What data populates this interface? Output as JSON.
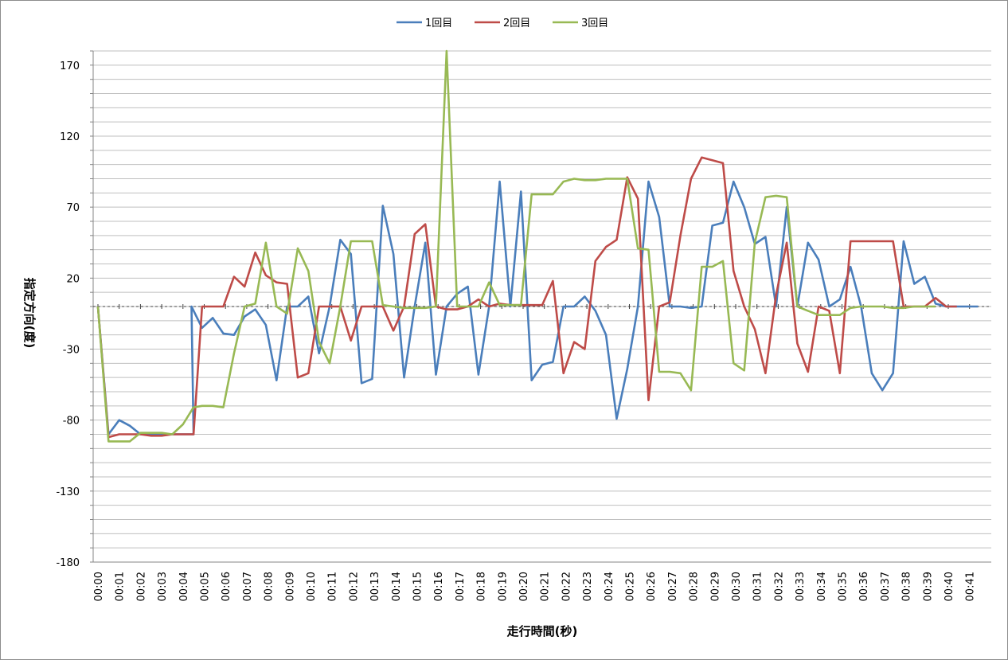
{
  "chart_data": {
    "type": "line",
    "xlabel": "走行時間(秒)",
    "ylabel": "指定方向(度)",
    "ylim": [
      -180,
      180
    ],
    "yticks": [
      -180,
      -130,
      -80,
      -30,
      20,
      70,
      120,
      170
    ],
    "grid": true,
    "legend_position": "top-center",
    "x_tick_labels": [
      "00:00",
      "00:01",
      "00:02",
      "00:03",
      "00:04",
      "00:05",
      "00:06",
      "00:07",
      "00:08",
      "00:09",
      "00:10",
      "00:11",
      "00:12",
      "00:13",
      "00:14",
      "00:15",
      "00:16",
      "00:17",
      "00:18",
      "00:19",
      "00:20",
      "00:21",
      "00:22",
      "00:23",
      "00:24",
      "00:25",
      "00:26",
      "00:27",
      "00:28",
      "00:29",
      "00:30",
      "00:31",
      "00:32",
      "00:33",
      "00:34",
      "00:35",
      "00:36",
      "00:37",
      "00:38",
      "00:39",
      "00:40",
      "00:41"
    ],
    "x_unit": "seconds",
    "series": [
      {
        "name": "1回目",
        "color": "#4a7ebb",
        "points": [
          [
            0,
            0
          ],
          [
            0.5,
            -90
          ],
          [
            1,
            -80
          ],
          [
            1.5,
            -84
          ],
          [
            2,
            -90
          ],
          [
            2.5,
            -90
          ],
          [
            3,
            -90
          ],
          [
            3.5,
            -90
          ],
          [
            4,
            -90
          ],
          [
            4.5,
            -90
          ],
          [
            4.4,
            0
          ],
          [
            4.9,
            -15
          ],
          [
            5.4,
            -8
          ],
          [
            5.9,
            -19
          ],
          [
            6.4,
            -20
          ],
          [
            6.9,
            -7
          ],
          [
            7.4,
            -2
          ],
          [
            7.9,
            -13
          ],
          [
            8.4,
            -52
          ],
          [
            8.9,
            0
          ],
          [
            9.4,
            0
          ],
          [
            9.9,
            7
          ],
          [
            10.4,
            -33
          ],
          [
            10.9,
            0
          ],
          [
            11.4,
            47
          ],
          [
            11.9,
            37
          ],
          [
            12.4,
            -54
          ],
          [
            12.9,
            -51
          ],
          [
            13.4,
            71
          ],
          [
            13.9,
            37
          ],
          [
            14.4,
            -50
          ],
          [
            14.9,
            0
          ],
          [
            15.4,
            45
          ],
          [
            15.9,
            -48
          ],
          [
            16.4,
            0
          ],
          [
            16.9,
            9
          ],
          [
            17.4,
            14
          ],
          [
            17.9,
            -48
          ],
          [
            18.4,
            0
          ],
          [
            18.9,
            88
          ],
          [
            19.4,
            0
          ],
          [
            19.9,
            81
          ],
          [
            20.4,
            -52
          ],
          [
            20.9,
            -41
          ],
          [
            21.4,
            -39
          ],
          [
            21.9,
            0
          ],
          [
            22.4,
            0
          ],
          [
            22.9,
            7
          ],
          [
            23.4,
            -3
          ],
          [
            23.9,
            -20
          ],
          [
            24.4,
            -79
          ],
          [
            24.9,
            -44
          ],
          [
            25.4,
            0
          ],
          [
            25.9,
            88
          ],
          [
            26.4,
            63
          ],
          [
            26.9,
            0
          ],
          [
            27.4,
            0
          ],
          [
            27.9,
            -1
          ],
          [
            28.4,
            0
          ],
          [
            28.9,
            57
          ],
          [
            29.4,
            59
          ],
          [
            29.9,
            88
          ],
          [
            30.4,
            70
          ],
          [
            30.9,
            44
          ],
          [
            31.4,
            49
          ],
          [
            31.9,
            0
          ],
          [
            32.4,
            70
          ],
          [
            32.9,
            0
          ],
          [
            33.4,
            45
          ],
          [
            33.9,
            33
          ],
          [
            34.4,
            0
          ],
          [
            34.9,
            5
          ],
          [
            35.4,
            28
          ],
          [
            35.9,
            0
          ],
          [
            36.4,
            -47
          ],
          [
            36.9,
            -59
          ],
          [
            37.4,
            -47
          ],
          [
            37.9,
            46
          ],
          [
            38.4,
            16
          ],
          [
            38.9,
            21
          ],
          [
            39.4,
            2
          ],
          [
            39.9,
            0
          ],
          [
            40.4,
            0
          ],
          [
            40.9,
            0
          ],
          [
            41.4,
            0
          ]
        ]
      },
      {
        "name": "2回目",
        "color": "#be4b48",
        "points": [
          [
            0,
            0
          ],
          [
            0.5,
            -92
          ],
          [
            1,
            -90
          ],
          [
            1.5,
            -90
          ],
          [
            2,
            -90
          ],
          [
            2.5,
            -91
          ],
          [
            3,
            -91
          ],
          [
            3.5,
            -90
          ],
          [
            4,
            -90
          ],
          [
            4.5,
            -90
          ],
          [
            4.9,
            0
          ],
          [
            5.4,
            0
          ],
          [
            5.9,
            0
          ],
          [
            6.4,
            21
          ],
          [
            6.9,
            14
          ],
          [
            7.4,
            38
          ],
          [
            7.9,
            22
          ],
          [
            8.4,
            17
          ],
          [
            8.9,
            16
          ],
          [
            9.4,
            -50
          ],
          [
            9.9,
            -47
          ],
          [
            10.4,
            0
          ],
          [
            10.9,
            0
          ],
          [
            11.4,
            0
          ],
          [
            11.9,
            -24
          ],
          [
            12.4,
            0
          ],
          [
            12.9,
            0
          ],
          [
            13.4,
            0
          ],
          [
            13.9,
            -17
          ],
          [
            14.4,
            0
          ],
          [
            14.9,
            51
          ],
          [
            15.4,
            58
          ],
          [
            15.9,
            0
          ],
          [
            16.4,
            -2
          ],
          [
            16.9,
            -2
          ],
          [
            17.4,
            0
          ],
          [
            17.9,
            5
          ],
          [
            18.4,
            0
          ],
          [
            18.9,
            2
          ],
          [
            19.4,
            1
          ],
          [
            19.9,
            1
          ],
          [
            20.4,
            1
          ],
          [
            20.9,
            1
          ],
          [
            21.4,
            18
          ],
          [
            21.9,
            -47
          ],
          [
            22.4,
            -25
          ],
          [
            22.9,
            -30
          ],
          [
            23.4,
            32
          ],
          [
            23.9,
            42
          ],
          [
            24.4,
            47
          ],
          [
            24.9,
            91
          ],
          [
            25.4,
            76
          ],
          [
            25.9,
            -66
          ],
          [
            26.4,
            0
          ],
          [
            26.9,
            3
          ],
          [
            27.4,
            50
          ],
          [
            27.9,
            90
          ],
          [
            28.4,
            105
          ],
          [
            28.9,
            103
          ],
          [
            29.4,
            101
          ],
          [
            29.9,
            25
          ],
          [
            30.4,
            0
          ],
          [
            30.9,
            -16
          ],
          [
            31.4,
            -47
          ],
          [
            31.9,
            8
          ],
          [
            32.4,
            45
          ],
          [
            32.9,
            -26
          ],
          [
            33.4,
            -46
          ],
          [
            33.9,
            0
          ],
          [
            34.4,
            -3
          ],
          [
            34.9,
            -47
          ],
          [
            35.4,
            46
          ],
          [
            35.9,
            46
          ],
          [
            36.4,
            46
          ],
          [
            36.9,
            46
          ],
          [
            37.4,
            46
          ],
          [
            37.9,
            0
          ],
          [
            38.4,
            0
          ],
          [
            38.9,
            0
          ],
          [
            39.4,
            6
          ],
          [
            39.9,
            0
          ],
          [
            40.4,
            0
          ]
        ]
      },
      {
        "name": "3回目",
        "color": "#98b954",
        "points": [
          [
            0,
            0
          ],
          [
            0.5,
            -95
          ],
          [
            1,
            -95
          ],
          [
            1.5,
            -95
          ],
          [
            2,
            -89
          ],
          [
            2.5,
            -89
          ],
          [
            3,
            -89
          ],
          [
            3.5,
            -90
          ],
          [
            4,
            -83
          ],
          [
            4.5,
            -71
          ],
          [
            4.9,
            -70
          ],
          [
            5.4,
            -70
          ],
          [
            5.9,
            -71
          ],
          [
            6.4,
            -33
          ],
          [
            6.9,
            0
          ],
          [
            7.4,
            2
          ],
          [
            7.9,
            45
          ],
          [
            8.4,
            0
          ],
          [
            8.9,
            -5
          ],
          [
            9.4,
            41
          ],
          [
            9.9,
            25
          ],
          [
            10.4,
            -25
          ],
          [
            10.9,
            -40
          ],
          [
            11.4,
            0
          ],
          [
            11.9,
            46
          ],
          [
            12.4,
            46
          ],
          [
            12.9,
            46
          ],
          [
            13.4,
            1
          ],
          [
            13.9,
            0
          ],
          [
            14.4,
            -1
          ],
          [
            14.9,
            -1
          ],
          [
            15.4,
            -1
          ],
          [
            15.9,
            0
          ],
          [
            16.4,
            180
          ],
          [
            16.9,
            0
          ],
          [
            17.4,
            0
          ],
          [
            17.9,
            0
          ],
          [
            18.4,
            17
          ],
          [
            18.9,
            1
          ],
          [
            19.4,
            1
          ],
          [
            19.9,
            1
          ],
          [
            20.4,
            79
          ],
          [
            20.9,
            79
          ],
          [
            21.4,
            79
          ],
          [
            21.9,
            88
          ],
          [
            22.4,
            90
          ],
          [
            22.9,
            89
          ],
          [
            23.4,
            89
          ],
          [
            23.9,
            90
          ],
          [
            24.4,
            90
          ],
          [
            24.9,
            90
          ],
          [
            25.4,
            41
          ],
          [
            25.9,
            40
          ],
          [
            26.4,
            -46
          ],
          [
            26.9,
            -46
          ],
          [
            27.4,
            -47
          ],
          [
            27.9,
            -59
          ],
          [
            28.4,
            28
          ],
          [
            28.9,
            28
          ],
          [
            29.4,
            32
          ],
          [
            29.9,
            -40
          ],
          [
            30.4,
            -45
          ],
          [
            30.9,
            45
          ],
          [
            31.4,
            77
          ],
          [
            31.9,
            78
          ],
          [
            32.4,
            77
          ],
          [
            32.9,
            0
          ],
          [
            33.4,
            -3
          ],
          [
            33.9,
            -6
          ],
          [
            34.4,
            -6
          ],
          [
            34.9,
            -6
          ],
          [
            35.4,
            -1
          ],
          [
            35.9,
            0
          ],
          [
            36.4,
            0
          ],
          [
            36.9,
            0
          ],
          [
            37.4,
            -1
          ],
          [
            37.9,
            -1
          ],
          [
            38.4,
            0
          ],
          [
            38.9,
            0
          ],
          [
            39.4,
            0
          ]
        ]
      }
    ]
  }
}
